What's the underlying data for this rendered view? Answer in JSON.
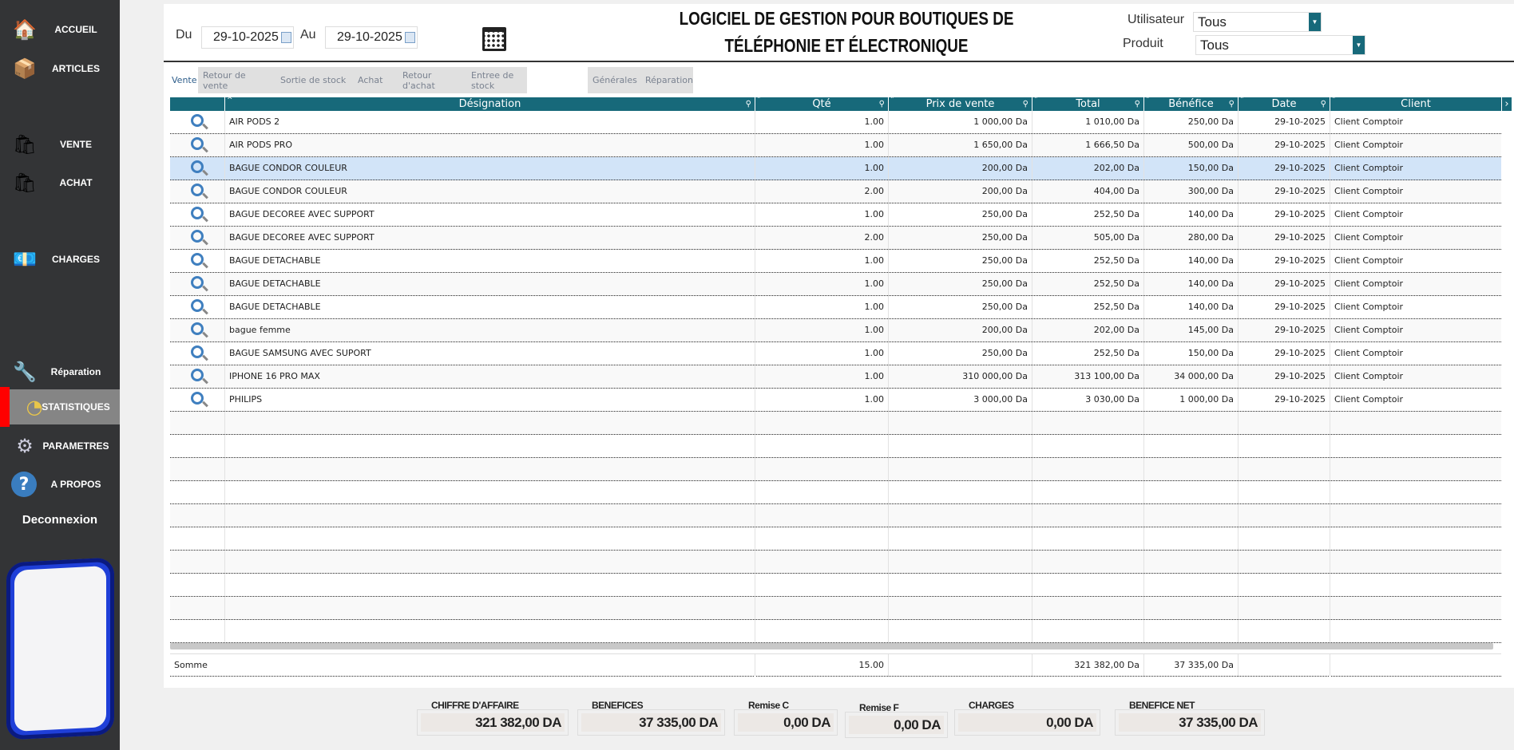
{
  "sidebar": {
    "items": [
      {
        "label": "ACCUEIL",
        "icon": "house-icon"
      },
      {
        "label": "ARTICLES",
        "icon": "crate-icon"
      },
      {
        "label": "VENTE",
        "icon": "shopping-bag-icon"
      },
      {
        "label": "ACHAT",
        "icon": "bag-icon"
      },
      {
        "label": "CHARGES",
        "icon": "money-icon"
      },
      {
        "label": "Réparation",
        "icon": "wrench-icon"
      },
      {
        "label": "STATISTIQUES",
        "icon": "pie-chart-icon",
        "active": true
      },
      {
        "label": "PARAMETRES",
        "icon": "gear-icon"
      },
      {
        "label": "A PROPOS",
        "icon": "help-icon"
      }
    ],
    "logout": "Deconnexion"
  },
  "filters": {
    "du_label": "Du",
    "du_value": "29-10-2025",
    "au_label": "Au",
    "au_value": "29-10-2025",
    "user_label": "Utilisateur",
    "user_value": "Tous",
    "product_label": "Produit",
    "product_value": "Tous"
  },
  "title": {
    "line1": "LOGICIEL DE GESTION POUR BOUTIQUES DE",
    "line2": "TÉLÉPHONIE ET ÉLECTRONIQUE"
  },
  "tabs": [
    "Vente",
    "Retour de vente",
    "Sortie de stock",
    "Achat",
    "Retour d'achat",
    "Entree de stock"
  ],
  "tabs2": [
    "Générales",
    "Réparation"
  ],
  "table": {
    "columns": [
      "Désignation",
      "Qté",
      "Prix de vente",
      "Total",
      "Bénéfice",
      "Date",
      "Client"
    ],
    "rows": [
      [
        "AIR PODS 2",
        "1.00",
        "1 000,00 Da",
        "1 010,00 Da",
        "250,00 Da",
        "29-10-2025",
        "Client Comptoir"
      ],
      [
        "AIR PODS PRO",
        "1.00",
        "1 650,00 Da",
        "1 666,50 Da",
        "500,00 Da",
        "29-10-2025",
        "Client Comptoir"
      ],
      [
        "BAGUE CONDOR COULEUR",
        "1.00",
        "200,00 Da",
        "202,00 Da",
        "150,00 Da",
        "29-10-2025",
        "Client Comptoir"
      ],
      [
        "BAGUE CONDOR COULEUR",
        "2.00",
        "200,00 Da",
        "404,00 Da",
        "300,00 Da",
        "29-10-2025",
        "Client Comptoir"
      ],
      [
        "BAGUE DECOREE AVEC SUPPORT",
        "1.00",
        "250,00 Da",
        "252,50 Da",
        "140,00 Da",
        "29-10-2025",
        "Client Comptoir"
      ],
      [
        "BAGUE DECOREE AVEC SUPPORT",
        "2.00",
        "250,00 Da",
        "505,00 Da",
        "280,00 Da",
        "29-10-2025",
        "Client Comptoir"
      ],
      [
        "BAGUE DETACHABLE",
        "1.00",
        "250,00 Da",
        "252,50 Da",
        "140,00 Da",
        "29-10-2025",
        "Client Comptoir"
      ],
      [
        "BAGUE DETACHABLE",
        "1.00",
        "250,00 Da",
        "252,50 Da",
        "140,00 Da",
        "29-10-2025",
        "Client Comptoir"
      ],
      [
        "BAGUE DETACHABLE",
        "1.00",
        "250,00 Da",
        "252,50 Da",
        "140,00 Da",
        "29-10-2025",
        "Client Comptoir"
      ],
      [
        "bague femme",
        "1.00",
        "200,00 Da",
        "202,00 Da",
        "145,00 Da",
        "29-10-2025",
        "Client Comptoir"
      ],
      [
        "BAGUE SAMSUNG AVEC SUPORT",
        "1.00",
        "250,00 Da",
        "252,50 Da",
        "150,00 Da",
        "29-10-2025",
        "Client Comptoir"
      ],
      [
        "IPHONE 16 PRO MAX",
        "1.00",
        "310 000,00 Da",
        "313 100,00 Da",
        "34 000,00 Da",
        "29-10-2025",
        "Client Comptoir"
      ],
      [
        "PHILIPS",
        "1.00",
        "3 000,00 Da",
        "3 030,00 Da",
        "1 000,00 Da",
        "29-10-2025",
        "Client Comptoir"
      ]
    ],
    "selected_row": 2,
    "sum": {
      "label": "Somme",
      "qte": "15.00",
      "total": "321 382,00 Da",
      "benefice": "37 335,00 Da"
    }
  },
  "summary": [
    {
      "label": "CHIFFRE D'AFFAIRE",
      "value": "321 382,00 DA"
    },
    {
      "label": "BENEFICES",
      "value": "37 335,00 DA"
    },
    {
      "label": "Remise C",
      "value": "0,00 DA"
    },
    {
      "label": "Remise F",
      "value": "0,00 DA"
    },
    {
      "label": "CHARGES",
      "value": "0,00 DA"
    },
    {
      "label": "BENEFICE NET",
      "value": "37 335,00 DA"
    }
  ],
  "colors": {
    "header": "#17697a",
    "sidebar": "#333436",
    "active_marker": "#ff0000",
    "selected_row": "#d2e4f8"
  }
}
